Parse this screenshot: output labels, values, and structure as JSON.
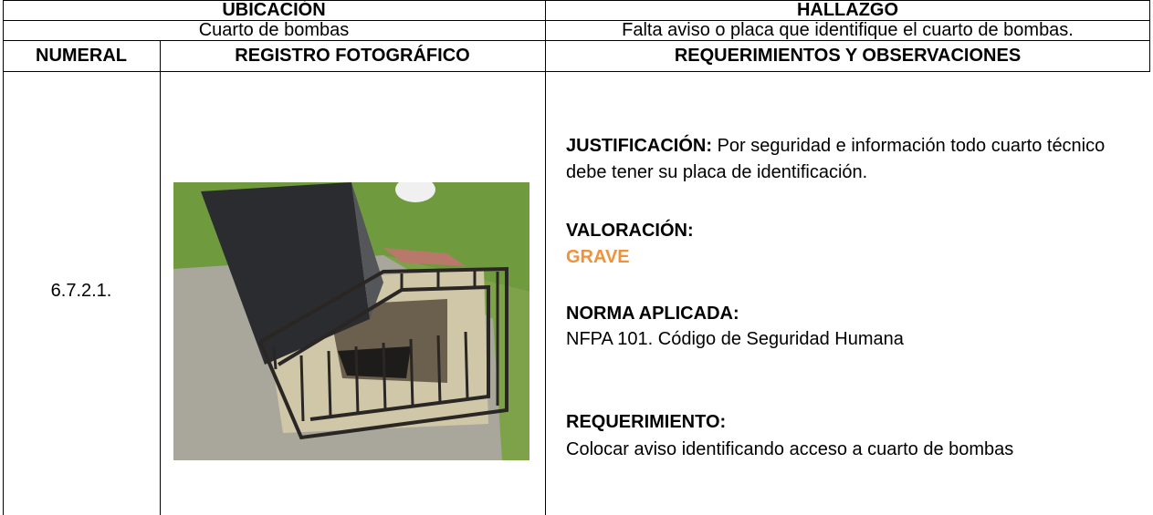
{
  "header": {
    "ubicacion_label": "UBICACIÓN",
    "hallazgo_label": "HALLAZGO",
    "ubicacion": "Cuarto de bombas",
    "hallazgo": "Falta aviso o placa que identifique el cuarto de bombas."
  },
  "columns": [
    "NUMERAL",
    "REGISTRO FOTOGRÁFICO",
    "REQUERIMIENTOS Y OBSERVACIONES"
  ],
  "row": {
    "numeral": "6.7.2.1.",
    "sections": [
      {
        "label": "JUSTIFICACIÓN:",
        "text": "Por seguridad e información todo cuarto técnico debe tener su placa de identificación."
      },
      {
        "label": "VALORACIÓN:",
        "text": "GRAVE"
      },
      {
        "label": "NORMA APLICADA:",
        "text": "NFPA 101. Código de Seguridad Humana"
      },
      {
        "label": "REQUERIMIENTO:",
        "text": "Colocar aviso identificando acceso a cuarto de bombas"
      }
    ]
  }
}
